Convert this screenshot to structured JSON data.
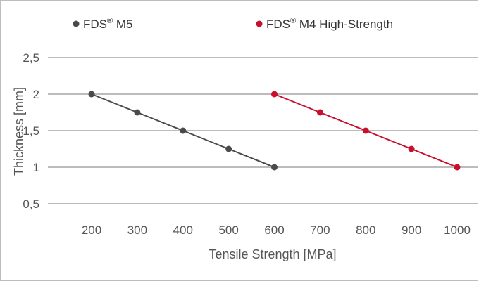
{
  "chart_data": {
    "type": "line",
    "title": "",
    "xlabel": "Tensile Strength [MPa]",
    "ylabel": "Thickness [mm]",
    "x_ticks": [
      "200",
      "300",
      "400",
      "500",
      "600",
      "700",
      "800",
      "900",
      "1000"
    ],
    "x_tick_values": [
      200,
      300,
      400,
      500,
      600,
      700,
      800,
      900,
      1000
    ],
    "y_ticks": [
      "0,5",
      "1",
      "1,5",
      "2",
      "2,5"
    ],
    "y_tick_values": [
      0.5,
      1,
      1.5,
      2,
      2.5
    ],
    "xlim": [
      200,
      1000
    ],
    "ylim": [
      0.5,
      2.5
    ],
    "grid": "horizontal",
    "legend_position": "top",
    "series": [
      {
        "name": "FDS® M5",
        "label_base": "FDS",
        "label_sup": "®",
        "label_rest": " M5",
        "color": "#4a4a4a",
        "x": [
          200,
          300,
          400,
          500,
          600
        ],
        "y": [
          2,
          1.75,
          1.5,
          1.25,
          1
        ]
      },
      {
        "name": "FDS® M4 High-Strength",
        "label_base": "FDS",
        "label_sup": "®",
        "label_rest": " M4 High-Strength",
        "color": "#c8102e",
        "x": [
          600,
          700,
          800,
          900,
          1000
        ],
        "y": [
          2,
          1.75,
          1.5,
          1.25,
          1
        ]
      }
    ]
  }
}
